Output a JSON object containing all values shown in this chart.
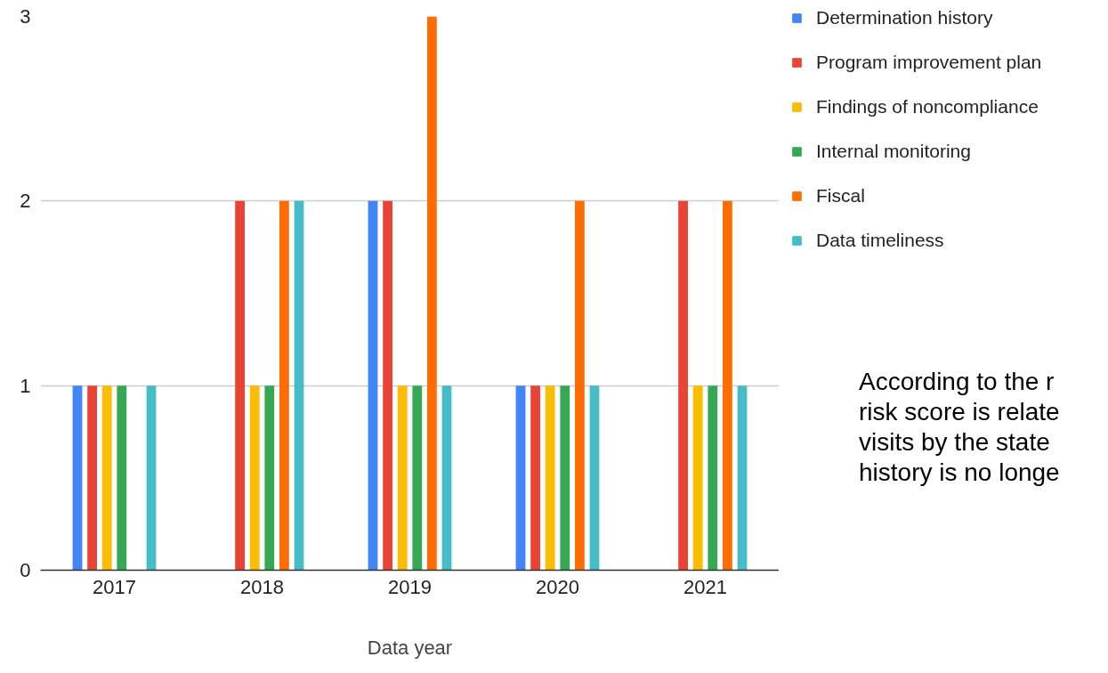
{
  "chart_data": {
    "type": "bar",
    "xlabel": "Data year",
    "categories": [
      "2017",
      "2018",
      "2019",
      "2020",
      "2021"
    ],
    "series": [
      {
        "name": "Determination history",
        "color": "#4285f4",
        "values": [
          1,
          0,
          2,
          1,
          0
        ]
      },
      {
        "name": "Program improvement plan",
        "color": "#ea4335",
        "values": [
          1,
          2,
          2,
          1,
          2
        ]
      },
      {
        "name": "Findings of noncompliance",
        "color": "#fbbc04",
        "values": [
          1,
          1,
          1,
          1,
          1
        ]
      },
      {
        "name": "Internal monitoring",
        "color": "#34a853",
        "values": [
          1,
          1,
          1,
          1,
          1
        ]
      },
      {
        "name": "Fiscal",
        "color": "#ff6d01",
        "values": [
          0,
          2,
          3,
          2,
          2
        ]
      },
      {
        "name": "Data timeliness",
        "color": "#46bdc6",
        "values": [
          1,
          2,
          1,
          1,
          1
        ]
      }
    ],
    "ylim": [
      0,
      3
    ],
    "yticks": [
      0,
      1,
      2,
      3
    ],
    "grid": "y",
    "legend": "top right",
    "annotations": [
      "According to the r\nrisk score is relate\nvisits by the state\nhistory is no longe"
    ]
  }
}
